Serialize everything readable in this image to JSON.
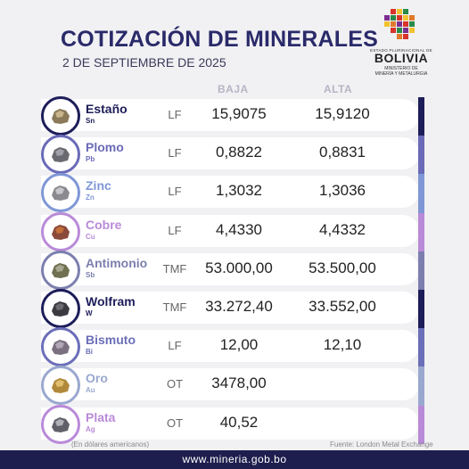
{
  "header": {
    "title": "COTIZACIÓN DE MINERALES",
    "date": "2 DE SEPTIEMBRE DE 2025"
  },
  "logo": {
    "line1": "ESTADO PLURINACIONAL DE",
    "line2": "BOLIVIA",
    "line3a": "MINISTERIO DE",
    "line3b": "MINERÍA Y METALURGIA"
  },
  "columns": {
    "baja": "BAJA",
    "alta": "ALTA"
  },
  "rows": [
    {
      "name": "Estaño",
      "symbol": "Sn",
      "unit": "LF",
      "baja": "15,9075",
      "alta": "15,9120",
      "color": "#1d1d5a",
      "icon": "tin-ore-icon"
    },
    {
      "name": "Plomo",
      "symbol": "Pb",
      "unit": "LF",
      "baja": "0,8822",
      "alta": "0,8831",
      "color": "#6a6ab8",
      "icon": "lead-ore-icon"
    },
    {
      "name": "Zinc",
      "symbol": "Zn",
      "unit": "LF",
      "baja": "1,3032",
      "alta": "1,3036",
      "color": "#7f97d6",
      "icon": "zinc-ore-icon"
    },
    {
      "name": "Cobre",
      "symbol": "Cu",
      "unit": "LF",
      "baja": "4,4330",
      "alta": "4,4332",
      "color": "#b98ad8",
      "icon": "copper-ore-icon"
    },
    {
      "name": "Antimonio",
      "symbol": "Sb",
      "unit": "TMF",
      "baja": "53.000,00",
      "alta": "53.500,00",
      "color": "#7c7fae",
      "icon": "antimony-ore-icon"
    },
    {
      "name": "Wolfram",
      "symbol": "W",
      "unit": "TMF",
      "baja": "33.272,40",
      "alta": "33.552,00",
      "color": "#1d1d5a",
      "icon": "wolfram-ore-icon"
    },
    {
      "name": "Bismuto",
      "symbol": "Bi",
      "unit": "LF",
      "baja": "12,00",
      "alta": "12,10",
      "color": "#6b6fb8",
      "icon": "bismuth-ore-icon"
    },
    {
      "name": "Oro",
      "symbol": "Au",
      "unit": "OT",
      "baja": "3478,00",
      "alta": "",
      "color": "#9aa8cf",
      "icon": "gold-ore-icon"
    },
    {
      "name": "Plata",
      "symbol": "Ag",
      "unit": "OT",
      "baja": "40,52",
      "alta": "",
      "color": "#b98ad8",
      "icon": "silver-ore-icon"
    }
  ],
  "footnotes": {
    "left": "(En dólares americanos)",
    "right": "Fuente: London Metal Exchange"
  },
  "footer": {
    "url": "www.mineria.gob.bo"
  }
}
